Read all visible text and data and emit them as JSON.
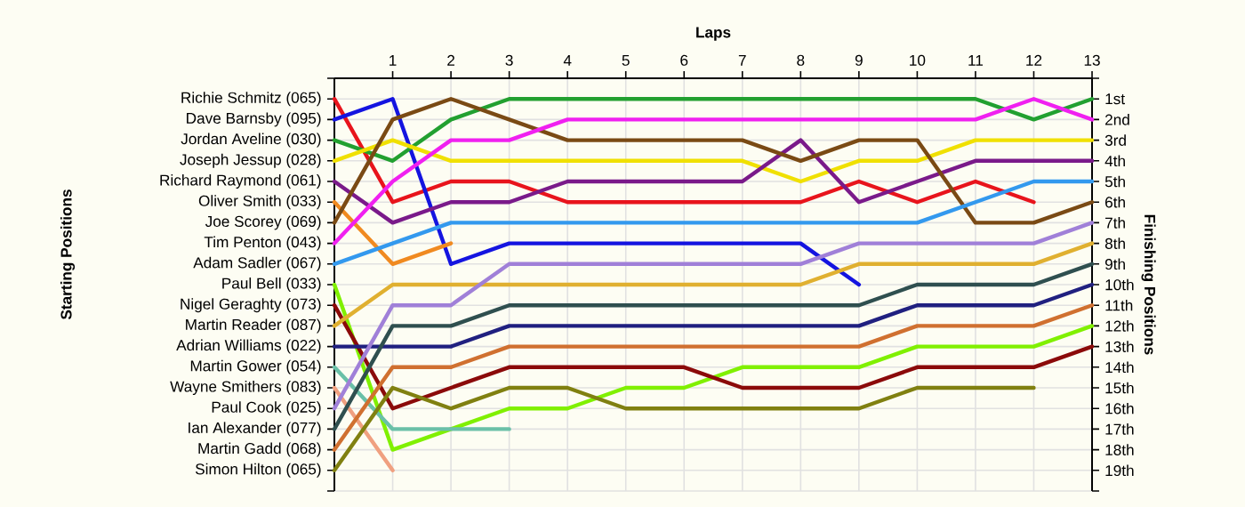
{
  "chart_data": {
    "type": "line",
    "xlabel": "Laps",
    "annotations": [
      "Starting Positions"
    ],
    "y2label": "Finishing Positions",
    "x": [
      0,
      1,
      2,
      3,
      4,
      5,
      6,
      7,
      8,
      9,
      10,
      11,
      12,
      13
    ],
    "xlim": [
      0,
      13
    ],
    "xticks": [
      1,
      2,
      3,
      4,
      5,
      6,
      7,
      8,
      9,
      10,
      11,
      12,
      13
    ],
    "y2lim": [
      20,
      0
    ],
    "y2ticks": [
      {
        "value": 0,
        "label": null
      },
      {
        "value": 1,
        "label": "1st"
      },
      {
        "value": 2,
        "label": "2nd"
      },
      {
        "value": 3,
        "label": "3rd"
      },
      {
        "value": 4,
        "label": "4th"
      },
      {
        "value": 5,
        "label": "5th"
      },
      {
        "value": 6,
        "label": "6th"
      },
      {
        "value": 7,
        "label": "7th"
      },
      {
        "value": 8,
        "label": "8th"
      },
      {
        "value": 9,
        "label": "9th"
      },
      {
        "value": 10,
        "label": "10th"
      },
      {
        "value": 11,
        "label": "11th"
      },
      {
        "value": 12,
        "label": "12th"
      },
      {
        "value": 13,
        "label": "13th"
      },
      {
        "value": 14,
        "label": "14th"
      },
      {
        "value": 15,
        "label": "15th"
      },
      {
        "value": 16,
        "label": "16th"
      },
      {
        "value": 17,
        "label": "17th"
      },
      {
        "value": 18,
        "label": "18th"
      },
      {
        "value": 19,
        "label": "19th"
      },
      {
        "value": 20,
        "label": null
      }
    ],
    "grid": true,
    "series": [
      {
        "name": "Richie Schmitz (065)",
        "axis": "y2",
        "color": "#e8141c",
        "values": [
          1,
          6,
          5,
          5,
          6,
          6,
          6,
          6,
          6,
          5,
          6,
          5,
          6,
          null
        ]
      },
      {
        "name": "Dave Barnsby (095)",
        "axis": "y2",
        "color": "#1414e0",
        "values": [
          2,
          1,
          9,
          8,
          8,
          8,
          8,
          8,
          8,
          10,
          null,
          null,
          null,
          null
        ]
      },
      {
        "name": "Jordan Aveline (030)",
        "axis": "y2",
        "color": "#22a030",
        "values": [
          3,
          4,
          2,
          1,
          1,
          1,
          1,
          1,
          1,
          1,
          1,
          1,
          2,
          1
        ]
      },
      {
        "name": "Joseph Jessup (028)",
        "axis": "y2",
        "color": "#f0e000",
        "values": [
          4,
          3,
          4,
          4,
          4,
          4,
          4,
          4,
          5,
          4,
          4,
          3,
          3,
          3
        ]
      },
      {
        "name": "Richard Raymond (061)",
        "axis": "y2",
        "color": "#7a1a8a",
        "values": [
          5,
          7,
          6,
          6,
          5,
          5,
          5,
          5,
          3,
          6,
          5,
          4,
          4,
          4
        ]
      },
      {
        "name": "Oliver Smith (033)",
        "axis": "y2",
        "color": "#f08a20",
        "values": [
          6,
          9,
          8,
          null,
          null,
          null,
          null,
          null,
          null,
          null,
          null,
          null,
          null,
          null
        ]
      },
      {
        "name": "Joe Scorey (069)",
        "axis": "y2",
        "color": "#7a4a14",
        "values": [
          7,
          2,
          1,
          2,
          3,
          3,
          3,
          3,
          4,
          3,
          3,
          7,
          7,
          6
        ]
      },
      {
        "name": "Tim Penton (043)",
        "axis": "y2",
        "color": "#f020f0",
        "values": [
          8,
          5,
          3,
          3,
          2,
          2,
          2,
          2,
          2,
          2,
          2,
          2,
          1,
          2
        ]
      },
      {
        "name": "Adam Sadler (067)",
        "axis": "y2",
        "color": "#3399ee",
        "values": [
          9,
          8,
          7,
          7,
          7,
          7,
          7,
          7,
          7,
          7,
          7,
          6,
          5,
          5
        ]
      },
      {
        "name": "Paul Bell (033)",
        "axis": "y2",
        "color": "#80f000",
        "values": [
          10,
          18,
          17,
          16,
          16,
          15,
          15,
          14,
          14,
          14,
          13,
          13,
          13,
          12
        ]
      },
      {
        "name": "Nigel Geraghty (073)",
        "axis": "y2",
        "color": "#8b0a0a",
        "values": [
          11,
          16,
          15,
          14,
          14,
          14,
          14,
          15,
          15,
          15,
          14,
          14,
          14,
          13
        ]
      },
      {
        "name": "Martin Reader (087)",
        "axis": "y2",
        "color": "#e0b030",
        "values": [
          12,
          10,
          10,
          10,
          10,
          10,
          10,
          10,
          10,
          9,
          9,
          9,
          9,
          8
        ]
      },
      {
        "name": "Adrian Williams (022)",
        "axis": "y2",
        "color": "#202080",
        "values": [
          13,
          13,
          13,
          12,
          12,
          12,
          12,
          12,
          12,
          12,
          11,
          11,
          11,
          10
        ]
      },
      {
        "name": "Martin Gower (054)",
        "axis": "y2",
        "color": "#6ac0a8",
        "values": [
          14,
          17,
          17,
          17,
          null,
          null,
          null,
          null,
          null,
          null,
          null,
          null,
          null,
          null
        ]
      },
      {
        "name": "Wayne Smithers (083)",
        "axis": "y2",
        "color": "#f0a080",
        "values": [
          15,
          19,
          null,
          null,
          null,
          null,
          null,
          null,
          null,
          null,
          null,
          null,
          null,
          null
        ]
      },
      {
        "name": "Paul Cook (025)",
        "axis": "y2",
        "color": "#a080d8",
        "values": [
          16,
          11,
          11,
          9,
          9,
          9,
          9,
          9,
          9,
          8,
          8,
          8,
          8,
          7
        ]
      },
      {
        "name": "Ian Alexander (077)",
        "axis": "y2",
        "color": "#2f4f4f",
        "values": [
          17,
          12,
          12,
          11,
          11,
          11,
          11,
          11,
          11,
          11,
          10,
          10,
          10,
          9
        ]
      },
      {
        "name": "Martin Gadd (068)",
        "axis": "y2",
        "color": "#d07030",
        "values": [
          18,
          14,
          14,
          13,
          13,
          13,
          13,
          13,
          13,
          13,
          12,
          12,
          12,
          11
        ]
      },
      {
        "name": "Simon Hilton (065)",
        "axis": "y2",
        "color": "#808010",
        "values": [
          19,
          15,
          16,
          15,
          15,
          16,
          16,
          16,
          16,
          16,
          15,
          15,
          15,
          null
        ]
      }
    ]
  }
}
